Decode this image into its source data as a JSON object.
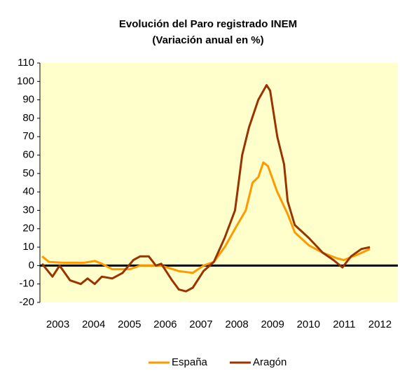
{
  "chart_data": {
    "type": "line",
    "title": "Evolución del Paro registrado INEM",
    "subtitle": "(Variación anual en %)",
    "xlim": [
      2003,
      2013
    ],
    "xticks": [
      {
        "value": 2003.5,
        "label": "2003"
      },
      {
        "value": 2004.5,
        "label": "2004"
      },
      {
        "value": 2005.5,
        "label": "2005"
      },
      {
        "value": 2006.5,
        "label": "2006"
      },
      {
        "value": 2007.5,
        "label": "2007"
      },
      {
        "value": 2008.5,
        "label": "2008"
      },
      {
        "value": 2009.5,
        "label": "2009"
      },
      {
        "value": 2010.5,
        "label": "2010"
      },
      {
        "value": 2011.5,
        "label": "2011"
      },
      {
        "value": 2012.5,
        "label": "2012"
      }
    ],
    "ylim": [
      -20,
      110
    ],
    "yticks": [
      -20,
      -10,
      0,
      10,
      20,
      30,
      40,
      50,
      60,
      70,
      80,
      90,
      100,
      110
    ],
    "zero_line": true,
    "legend": "bottom",
    "series": [
      {
        "name": "España",
        "color": "#ff9900",
        "x": [
          2003.06,
          2003.25,
          2003.65,
          2004.24,
          2004.53,
          2004.73,
          2005.02,
          2005.51,
          2005.8,
          2006.39,
          2006.88,
          2007.27,
          2007.57,
          2007.86,
          2008.16,
          2008.45,
          2008.75,
          2008.94,
          2009.1,
          2009.24,
          2009.37,
          2009.63,
          2009.92,
          2010.12,
          2010.51,
          2010.9,
          2011.29,
          2011.49,
          2011.88,
          2012.22
        ],
        "values": [
          5,
          2,
          1.5,
          1.5,
          2.5,
          1,
          -2,
          -2,
          0,
          0,
          -3,
          -4,
          0,
          2,
          10,
          20,
          30,
          45,
          48,
          56,
          54,
          40,
          28,
          18,
          11,
          7,
          4,
          3,
          6,
          9
        ]
      },
      {
        "name": "Aragón",
        "color": "#993300",
        "x": [
          2003.06,
          2003.35,
          2003.55,
          2003.84,
          2004.14,
          2004.33,
          2004.53,
          2004.73,
          2005.02,
          2005.31,
          2005.61,
          2005.8,
          2006.04,
          2006.24,
          2006.39,
          2006.69,
          2006.88,
          2007.08,
          2007.27,
          2007.57,
          2007.86,
          2008.16,
          2008.45,
          2008.65,
          2008.84,
          2009.1,
          2009.33,
          2009.43,
          2009.63,
          2009.82,
          2009.92,
          2010.12,
          2010.51,
          2010.9,
          2011.2,
          2011.45,
          2011.69,
          2011.98,
          2012.22
        ],
        "values": [
          1,
          -6,
          0,
          -8,
          -10,
          -7,
          -10,
          -6,
          -7,
          -4,
          3,
          5,
          5,
          0,
          1,
          -8,
          -13,
          -14,
          -12,
          -3,
          2,
          15,
          30,
          60,
          75,
          90,
          98,
          95,
          70,
          55,
          35,
          22,
          15,
          7,
          3,
          -1,
          5,
          9,
          10
        ]
      }
    ]
  }
}
